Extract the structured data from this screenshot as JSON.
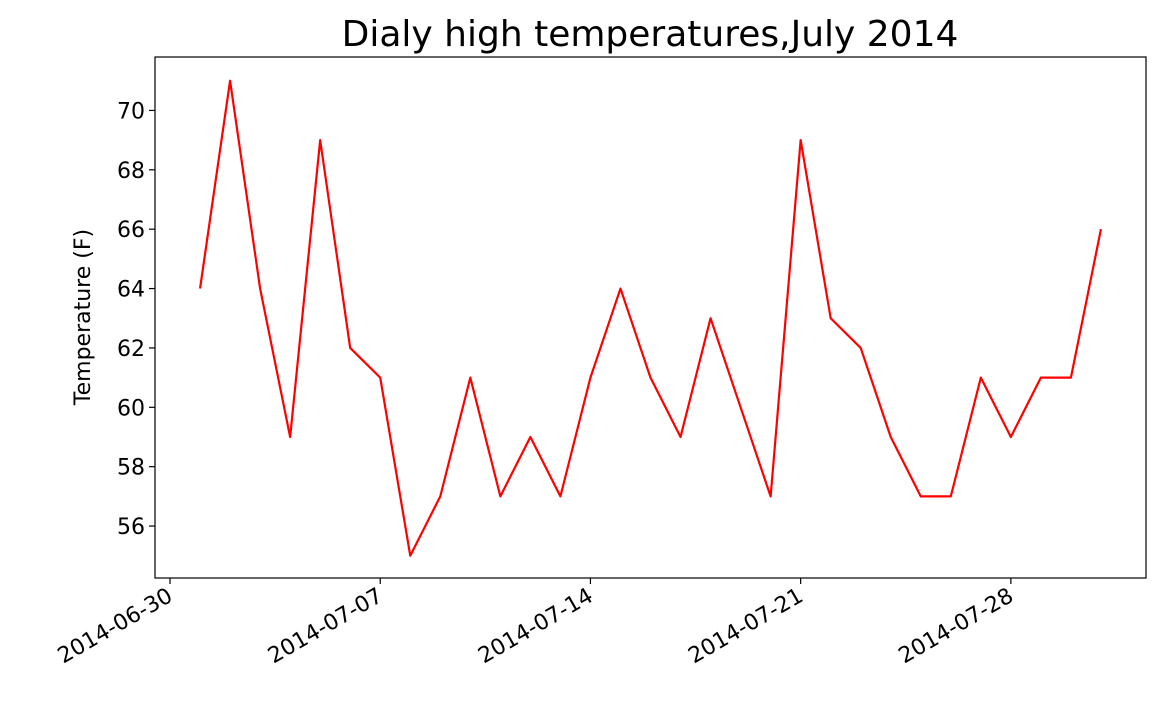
{
  "chart_data": {
    "type": "line",
    "title": "Dialy high temperatures,July 2014",
    "ylabel": "Temperature (F)",
    "x": [
      "2014-07-01",
      "2014-07-02",
      "2014-07-03",
      "2014-07-04",
      "2014-07-05",
      "2014-07-06",
      "2014-07-07",
      "2014-07-08",
      "2014-07-09",
      "2014-07-10",
      "2014-07-11",
      "2014-07-12",
      "2014-07-13",
      "2014-07-14",
      "2014-07-15",
      "2014-07-16",
      "2014-07-17",
      "2014-07-18",
      "2014-07-19",
      "2014-07-20",
      "2014-07-21",
      "2014-07-22",
      "2014-07-23",
      "2014-07-24",
      "2014-07-25",
      "2014-07-26",
      "2014-07-27",
      "2014-07-28",
      "2014-07-29",
      "2014-07-30",
      "2014-07-31"
    ],
    "series": [
      {
        "color": "#ff0000",
        "values": [
          64,
          71,
          64,
          59,
          69,
          62,
          61,
          55,
          57,
          61,
          57,
          59,
          57,
          61,
          64,
          61,
          59,
          63,
          60,
          57,
          69,
          63,
          62,
          59,
          57,
          57,
          61,
          59,
          61,
          61,
          66
        ]
      }
    ],
    "xlim": [
      "2014-06-29T12:00:00Z",
      "2014-08-01T12:00:00Z"
    ],
    "xticks": [
      "2014-06-30",
      "2014-07-07",
      "2014-07-14",
      "2014-07-21",
      "2014-07-28"
    ],
    "ylim": [
      54.25,
      71.8
    ],
    "yticks": [
      56,
      58,
      60,
      62,
      64,
      66,
      68,
      70
    ],
    "grid": false
  }
}
